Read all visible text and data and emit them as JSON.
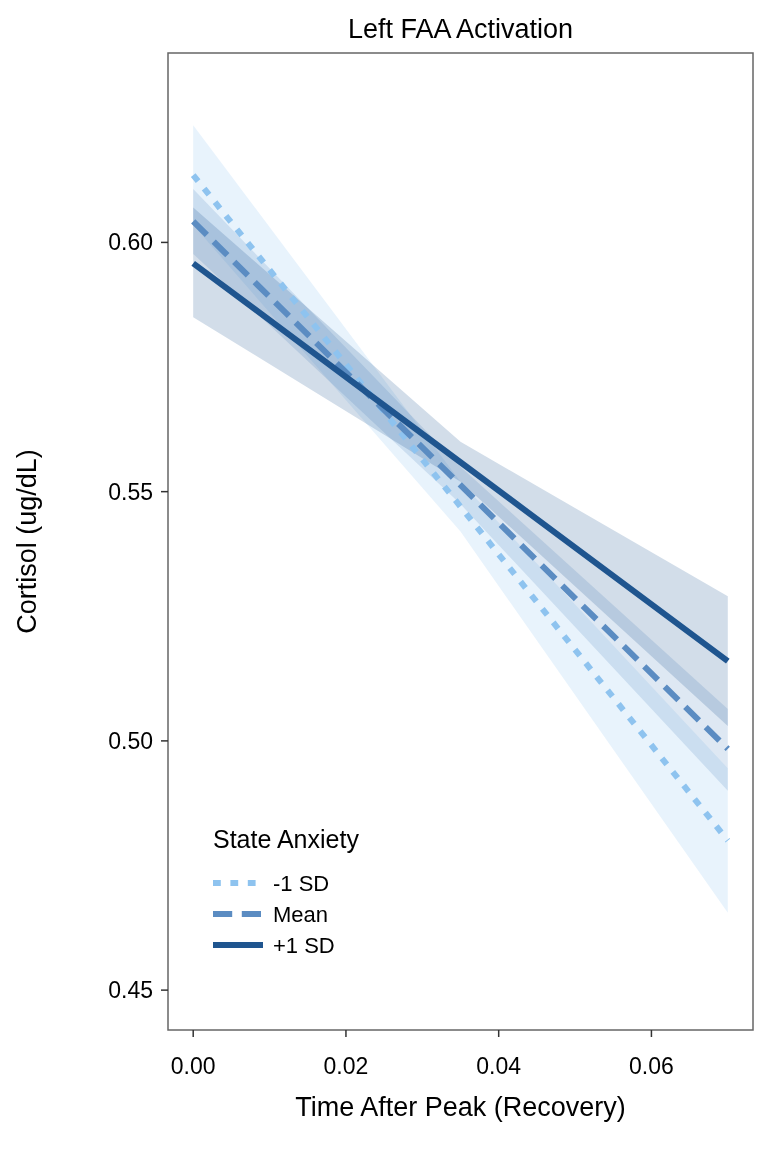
{
  "chart_data": {
    "type": "line",
    "title": "Left FAA Activation",
    "xlabel": "Time After Peak (Recovery)",
    "ylabel": "Cortisol (ug/dL)",
    "legend_title": "State Anxiety",
    "legend": "bottom left",
    "grid": false,
    "x": [
      0,
      0.035,
      0.07
    ],
    "xlim": [
      -0.0033,
      0.0733
    ],
    "xticks": [
      {
        "value": 0,
        "label": "0.00"
      },
      {
        "value": 0.02,
        "label": "0.02"
      },
      {
        "value": 0.04,
        "label": "0.04"
      },
      {
        "value": 0.06,
        "label": "0.06"
      }
    ],
    "ylim": [
      0.442,
      0.638
    ],
    "yticks": [
      {
        "value": 0.45,
        "label": "0.45"
      },
      {
        "value": 0.5,
        "label": "0.50"
      },
      {
        "value": 0.55,
        "label": "0.55"
      },
      {
        "value": 0.6,
        "label": "0.60"
      }
    ],
    "series": [
      {
        "name": "-1 SD",
        "color": "#8ec3ef",
        "line_style": "dotted",
        "values": [
          0.6135,
          0.547,
          0.48
        ],
        "lower": [
          0.6035,
          0.542,
          0.4655
        ],
        "upper": [
          0.6235,
          0.552,
          0.4945
        ]
      },
      {
        "name": "Mean",
        "color": "#5b8cc2",
        "line_style": "dashed",
        "values": [
          0.6042,
          0.5513,
          0.4984
        ],
        "lower": [
          0.5977,
          0.5475,
          0.49
        ],
        "upper": [
          0.6107,
          0.555,
          0.5064
        ]
      },
      {
        "name": "+1 SD",
        "color": "#1f558f",
        "line_style": "solid",
        "values": [
          0.5958,
          0.5559,
          0.516
        ],
        "lower": [
          0.585,
          0.552,
          0.503
        ],
        "upper": [
          0.607,
          0.56,
          0.529
        ]
      }
    ]
  }
}
